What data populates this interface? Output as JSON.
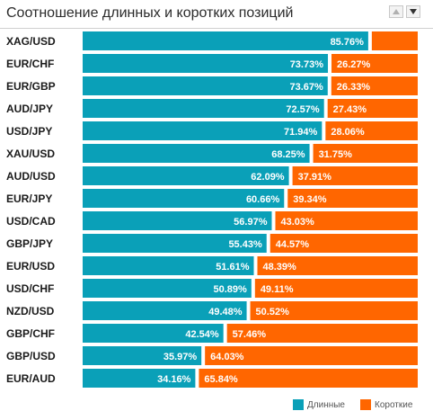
{
  "title": "Соотношение длинных и коротких позиций",
  "colors": {
    "long": "#0aa0b8",
    "short": "#ff6600",
    "label": "#ffffff",
    "pair": "#1a1a1a"
  },
  "legend": {
    "long": "Длинные",
    "short": "Короткие"
  },
  "chart_data": {
    "type": "bar",
    "stacked": true,
    "orientation": "horizontal",
    "categories": [
      "XAG/USD",
      "EUR/CHF",
      "EUR/GBP",
      "AUD/JPY",
      "USD/JPY",
      "XAU/USD",
      "AUD/USD",
      "EUR/JPY",
      "USD/CAD",
      "GBP/JPY",
      "EUR/USD",
      "USD/CHF",
      "NZD/USD",
      "GBP/CHF",
      "GBP/USD",
      "EUR/AUD"
    ],
    "series": [
      {
        "name": "Длинные",
        "values": [
          85.76,
          73.73,
          73.67,
          72.57,
          71.94,
          68.25,
          62.09,
          60.66,
          56.97,
          55.43,
          51.61,
          50.89,
          49.48,
          42.54,
          35.97,
          34.16
        ]
      },
      {
        "name": "Короткие",
        "values": [
          14.24,
          26.27,
          26.33,
          27.43,
          28.06,
          31.75,
          37.91,
          39.34,
          43.03,
          44.57,
          48.39,
          49.11,
          50.52,
          57.46,
          64.03,
          65.84
        ]
      }
    ],
    "long_labels": [
      "85.76%",
      "73.73%",
      "73.67%",
      "72.57%",
      "71.94%",
      "68.25%",
      "62.09%",
      "60.66%",
      "56.97%",
      "55.43%",
      "51.61%",
      "50.89%",
      "49.48%",
      "42.54%",
      "35.97%",
      "34.16%"
    ],
    "short_labels": [
      "",
      "26.27%",
      "26.33%",
      "27.43%",
      "28.06%",
      "31.75%",
      "37.91%",
      "39.34%",
      "43.03%",
      "44.57%",
      "48.39%",
      "49.11%",
      "50.52%",
      "57.46%",
      "64.03%",
      "65.84%"
    ],
    "xlim": [
      0,
      100
    ],
    "legend_position": "bottom-right"
  }
}
